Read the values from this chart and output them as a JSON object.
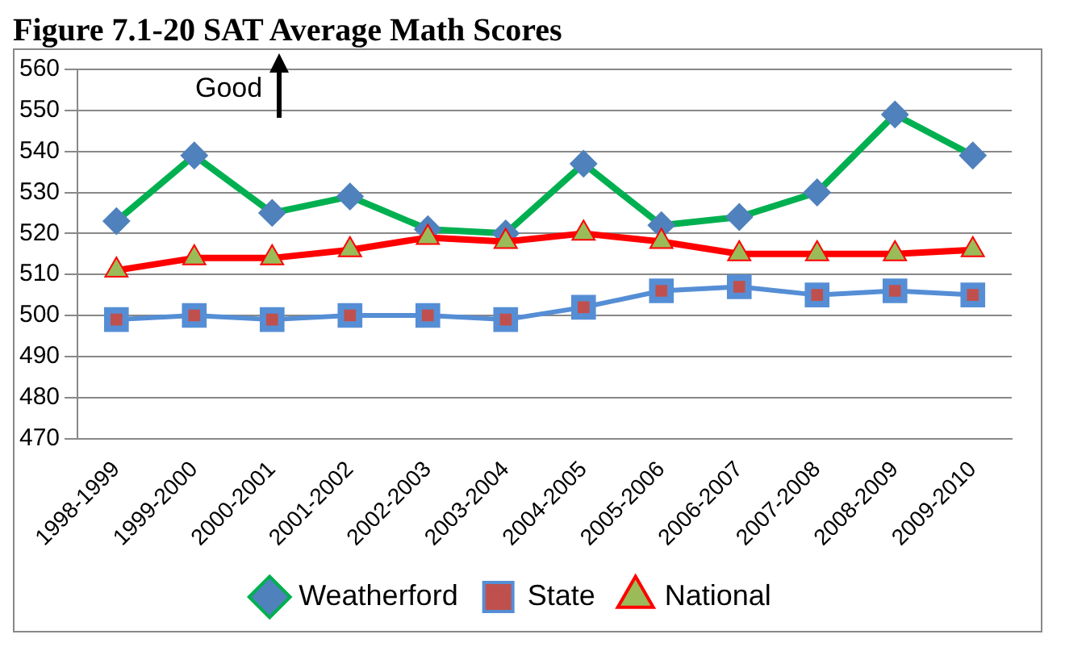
{
  "chart_data": {
    "type": "line",
    "title": "Figure 7.1-20 SAT Average Math Scores",
    "categories": [
      "1998-1999",
      "1999-2000",
      "2000-2001",
      "2001-2002",
      "2002-2003",
      "2003-2004",
      "2004-2005",
      "2005-2006",
      "2006-2007",
      "2007-2008",
      "2008-2009",
      "2009-2010"
    ],
    "series": [
      {
        "name": "Weatherford",
        "color": "#00b050",
        "marker": "diamond",
        "values": [
          523,
          539,
          525,
          529,
          521,
          520,
          537,
          522,
          524,
          530,
          549,
          539
        ]
      },
      {
        "name": "State",
        "color": "#558ed5",
        "marker": "square",
        "values": [
          499,
          500,
          499,
          500,
          500,
          499,
          502,
          506,
          507,
          505,
          506,
          505
        ]
      },
      {
        "name": "National",
        "color": "#ff0000",
        "marker": "triangle",
        "values": [
          511,
          514,
          514,
          516,
          519,
          518,
          520,
          518,
          515,
          515,
          515,
          516
        ]
      }
    ],
    "ylim": [
      470,
      560
    ],
    "yticks": [
      470,
      480,
      490,
      500,
      510,
      520,
      530,
      540,
      550,
      560
    ],
    "grid": "y",
    "legend": "bottom",
    "annotations": [
      "Good"
    ]
  }
}
